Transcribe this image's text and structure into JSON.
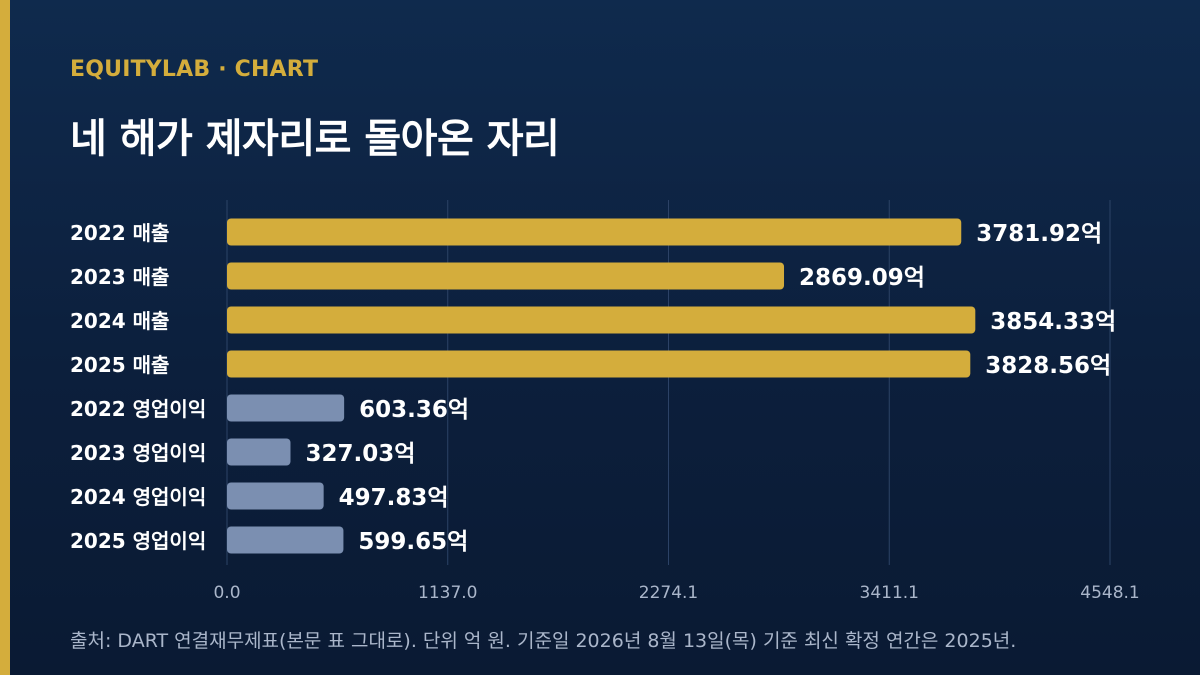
{
  "brand": "EQUITYLAB · CHART",
  "title": "네 해가 제자리로 돌아온 자리",
  "source": "출처: DART 연결재무제표(본문 표 그대로). 단위 억 원. 기준일 2026년 8월 13일(목) 기준 최신 확정 연간은 2025년.",
  "colors": {
    "accent": "#d4ad3c",
    "revenue_bar": "#d4ad3c",
    "profit_bar": "#7b8fb1",
    "background": "#0c1f3c",
    "gridline": "#2c4366"
  },
  "chart_data": {
    "type": "bar",
    "orientation": "horizontal",
    "categories": [
      "2022 매출",
      "2023 매출",
      "2024 매출",
      "2025 매출",
      "2022 영업이익",
      "2023 영업이익",
      "2024 영업이익",
      "2025 영업이익"
    ],
    "values": [
      3781.92,
      2869.09,
      3854.33,
      3828.56,
      603.36,
      327.03,
      497.83,
      599.65
    ],
    "value_labels": [
      "3781.92억",
      "2869.09억",
      "3854.33억",
      "3828.56억",
      "603.36억",
      "327.03억",
      "497.83억",
      "599.65억"
    ],
    "groups": [
      "매출",
      "매출",
      "매출",
      "매출",
      "영업이익",
      "영업이익",
      "영업이익",
      "영업이익"
    ],
    "xlim": [
      0,
      4548.1
    ],
    "xticks": [
      "0.0",
      "1137.0",
      "2274.1",
      "3411.1",
      "4548.1"
    ],
    "xtick_values": [
      0,
      1137.0,
      2274.1,
      3411.1,
      4548.1
    ],
    "grid": true
  }
}
